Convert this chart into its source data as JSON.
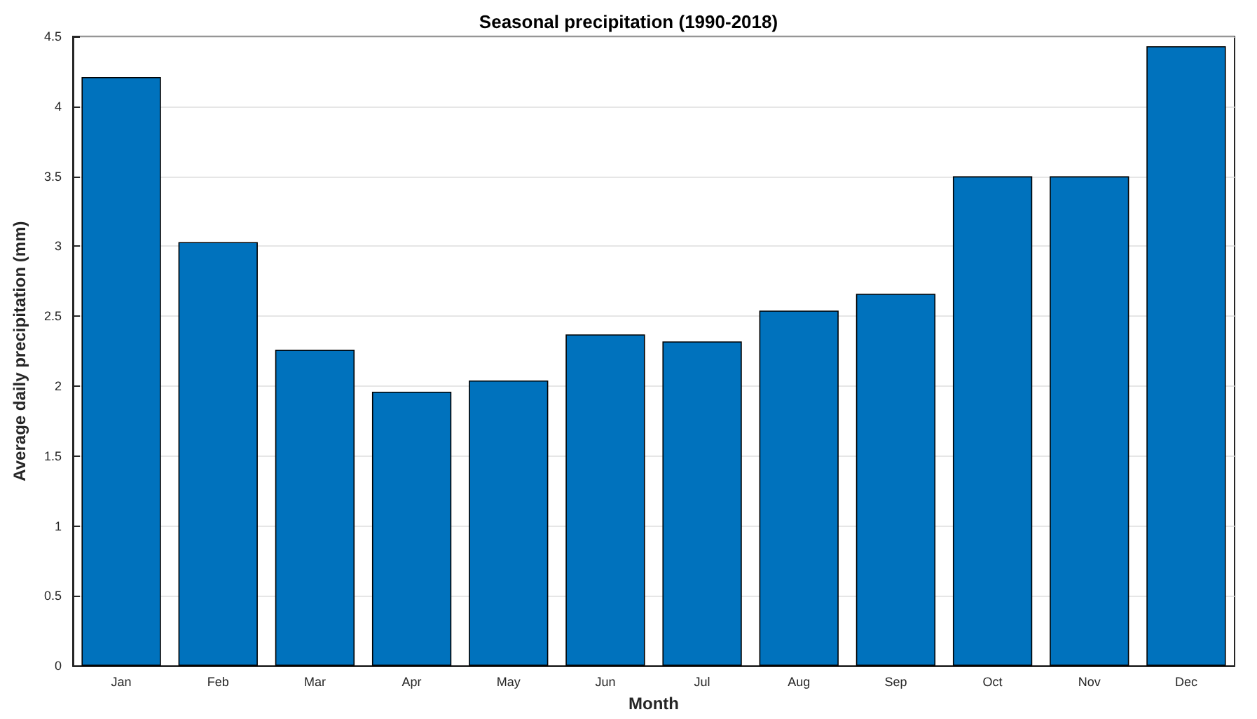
{
  "chart_data": {
    "type": "bar",
    "title": "Seasonal precipitation (1990-2018)",
    "xlabel": "Month",
    "ylabel": "Average daily precipitation (mm)",
    "categories": [
      "Jan",
      "Feb",
      "Mar",
      "Apr",
      "May",
      "Jun",
      "Jul",
      "Aug",
      "Sep",
      "Oct",
      "Nov",
      "Dec"
    ],
    "values": [
      4.21,
      3.03,
      2.26,
      1.96,
      2.04,
      2.37,
      2.32,
      2.54,
      2.66,
      3.5,
      3.5,
      4.43
    ],
    "color": "#0072bd",
    "ylim": [
      0,
      4.5
    ],
    "yticks": [
      0,
      0.5,
      1,
      1.5,
      2,
      2.5,
      3,
      3.5,
      4,
      4.5
    ],
    "grid": "y"
  }
}
